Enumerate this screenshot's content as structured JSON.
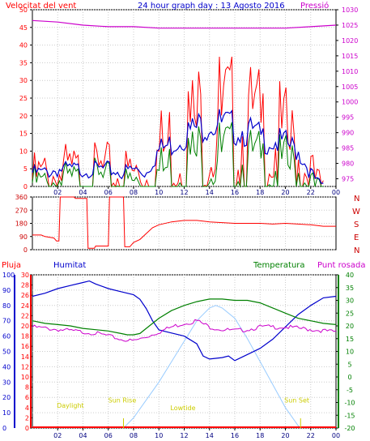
{
  "header": {
    "title": "24 hour graph day : 13 Agosto 2016",
    "wind_label": "Velocitat del vent",
    "pressure_label": "Pressió"
  },
  "panel2": {
    "compass": [
      "N",
      "W",
      "S",
      "E",
      "N"
    ]
  },
  "panel3": {
    "rain_label": "Pluja",
    "humidity_label": "Humitat",
    "temp_label": "Temperatura",
    "dew_label": "Punt rosada",
    "annotations": [
      "Daylight",
      "Sun Rise",
      "Lowtide",
      "Sun Set"
    ]
  },
  "colors": {
    "wind": "#ff0000",
    "gust": "#ff0000",
    "avg": "#0000cc",
    "green": "#008000",
    "pressure": "#cc00cc",
    "title": "#0000cc",
    "humidity": "#0000cc",
    "temperature": "#008000",
    "dew": "#cc00cc",
    "solar": "#99ccff",
    "annotation": "#cccc00",
    "rain": "#ff0000"
  },
  "chart_data": [
    {
      "type": "line",
      "title": "24 hour graph day : 13 Agosto 2016",
      "x_ticks": [
        "02",
        "04",
        "06",
        "08",
        "10",
        "12",
        "14",
        "16",
        "18",
        "20",
        "22",
        "00"
      ],
      "y_left_ticks": [
        0,
        5,
        10,
        15,
        20,
        25,
        30,
        35,
        40,
        45,
        50
      ],
      "y_left_lim": [
        0,
        50
      ],
      "y_right_ticks": [
        975,
        980,
        985,
        990,
        995,
        1000,
        1005,
        1010,
        1015,
        1020,
        1025,
        1030
      ],
      "y_right_lim": [
        972.5,
        1030
      ],
      "x_lim": [
        0,
        24
      ],
      "series": [
        {
          "name": "Velocitat del vent",
          "axis": "left",
          "x": [
            0,
            1,
            2,
            3,
            4,
            5,
            6,
            7,
            8,
            9,
            9.5,
            10,
            11,
            12,
            13,
            14,
            14.5,
            15,
            16,
            17,
            18,
            19,
            20,
            21,
            22,
            22.5,
            23
          ],
          "y": [
            6,
            7,
            8,
            8,
            7,
            8,
            8,
            7,
            8,
            7,
            12,
            16,
            20,
            24,
            27,
            29,
            31,
            28,
            27,
            26,
            24,
            22,
            20,
            16,
            8,
            3,
            2
          ]
        },
        {
          "axis": "left",
          "x": [
            0,
            1,
            2,
            3,
            4,
            5,
            6,
            7,
            8,
            9,
            9.5,
            10,
            11,
            12,
            13,
            14,
            15,
            16,
            17,
            18,
            19,
            20,
            21,
            22,
            22.5,
            23
          ],
          "y": [
            5,
            5,
            6,
            6,
            6,
            6,
            6,
            5,
            6,
            5,
            9,
            12,
            14,
            17,
            19,
            21,
            20,
            19,
            18,
            16,
            15,
            14,
            12,
            5,
            2,
            1
          ]
        },
        {
          "axis": "left",
          "x": [
            0,
            1,
            2,
            3,
            4,
            5,
            6,
            7,
            8,
            9,
            9.5,
            10,
            11,
            12,
            13,
            14,
            15,
            16,
            17,
            18,
            19,
            20,
            21,
            22,
            22.5,
            23
          ],
          "y": [
            4,
            3,
            5,
            4,
            4,
            5,
            4,
            3,
            4,
            3,
            6,
            8,
            10,
            12,
            14,
            15,
            14,
            13,
            12,
            11,
            10,
            10,
            9,
            3,
            1,
            0
          ]
        },
        {
          "name": "Pressió",
          "axis": "right",
          "x": [
            0,
            2,
            4,
            6,
            8,
            10,
            12,
            14,
            16,
            18,
            20,
            22,
            24
          ],
          "y": [
            1026.5,
            1026,
            1025,
            1024.5,
            1024.5,
            1024,
            1024,
            1024,
            1024,
            1024,
            1024,
            1024.5,
            1025
          ]
        }
      ]
    },
    {
      "type": "line",
      "y_ticks": [
        0,
        90,
        180,
        270,
        360
      ],
      "y_lim": [
        0,
        360
      ],
      "x_lim": [
        0,
        24
      ],
      "series": [
        {
          "axis": "left",
          "x": [
            0,
            0.7,
            1.0,
            1.7,
            1.9,
            2.1,
            2.2,
            3.3,
            3.4,
            4.3,
            4.4,
            4.9,
            5.0,
            6.0,
            6.1,
            7.2,
            7.3,
            7.7,
            8.0,
            8.5,
            9.0,
            9.5,
            10,
            11,
            12,
            13,
            14,
            15,
            16,
            17,
            18,
            19,
            20,
            21,
            22,
            23,
            24
          ],
          "y": [
            100,
            100,
            90,
            80,
            60,
            60,
            360,
            360,
            350,
            350,
            10,
            10,
            25,
            25,
            360,
            360,
            20,
            20,
            50,
            70,
            110,
            150,
            170,
            190,
            200,
            200,
            190,
            185,
            180,
            180,
            180,
            175,
            180,
            175,
            170,
            160,
            160
          ]
        }
      ]
    },
    {
      "type": "line",
      "x_lim": [
        0,
        24
      ],
      "y_humidity_ticks": [
        0,
        10,
        20,
        30,
        40,
        50,
        60,
        70,
        80,
        90,
        100
      ],
      "y_humidity_lim": [
        0,
        100
      ],
      "y_rain_ticks": [
        0,
        2,
        4,
        6,
        8,
        10,
        12,
        14,
        16,
        18,
        20,
        22,
        24,
        26,
        28,
        30
      ],
      "y_rain_lim": [
        0,
        30
      ],
      "y_temp_ticks": [
        -20,
        -15,
        -10,
        -5,
        0,
        5,
        10,
        15,
        20,
        25,
        30,
        35,
        40
      ],
      "y_temp_lim": [
        -20,
        40
      ],
      "series": [
        {
          "name": "Humitat",
          "axis": "humidity",
          "x": [
            0,
            1,
            2,
            3,
            4,
            4.5,
            5,
            6,
            7,
            8,
            8.5,
            9,
            9.5,
            10,
            11,
            12,
            13,
            13.5,
            14,
            15,
            15.5,
            16,
            17,
            18,
            19,
            20,
            21,
            22,
            23,
            24
          ],
          "y": [
            86,
            88,
            91,
            93,
            95,
            96,
            94,
            91,
            89,
            87,
            84,
            78,
            70,
            64,
            62,
            60,
            55,
            47,
            45,
            46,
            47,
            44,
            48,
            52,
            58,
            66,
            74,
            80,
            85,
            86
          ]
        },
        {
          "name": "Temperatura",
          "axis": "temp",
          "x": [
            0,
            1,
            2,
            3,
            4,
            5,
            6,
            7,
            7.5,
            8,
            8.5,
            9,
            10,
            11,
            12,
            13,
            14,
            15,
            16,
            17,
            18,
            19,
            20,
            21,
            22,
            23,
            24
          ],
          "y": [
            22,
            21,
            20.5,
            20,
            19,
            18.5,
            18,
            17,
            16.5,
            16.5,
            17,
            19,
            23,
            26,
            28,
            29.5,
            30.5,
            30.5,
            30,
            30,
            29,
            27,
            25,
            23,
            22,
            21,
            20.5
          ]
        },
        {
          "name": "Punt rosada",
          "axis": "temp",
          "x": [
            0,
            1,
            2,
            3,
            4,
            5,
            6,
            7,
            8,
            9,
            10,
            11,
            12,
            13,
            14,
            15,
            16,
            17,
            18,
            19,
            20,
            21,
            22,
            23,
            24
          ],
          "y": [
            20,
            19.5,
            19,
            18.5,
            18,
            17.5,
            16.5,
            15,
            14.5,
            16,
            18,
            20,
            21.5,
            22.5,
            20,
            19,
            18.5,
            19,
            20,
            20,
            20,
            19.5,
            19,
            18.5,
            18
          ]
        },
        {
          "name": "Solar",
          "axis": "temp",
          "x": [
            7.2,
            8,
            9,
            10,
            11,
            12,
            13,
            14,
            14.5,
            15,
            16,
            17,
            18,
            19,
            20,
            21,
            21.2
          ],
          "y": [
            -20,
            -16,
            -9,
            -2,
            6,
            14,
            22,
            27,
            28,
            27,
            23,
            15,
            6,
            -3,
            -12,
            -19,
            -20
          ]
        },
        {
          "name": "Pluja",
          "axis": "rain",
          "x": [
            0,
            24
          ],
          "y": [
            0,
            0
          ]
        }
      ],
      "annotations": [
        {
          "text": "Daylight",
          "x": 3.0,
          "temp": -12
        },
        {
          "text": "Sun Rise",
          "x": 7.1,
          "temp": -10
        },
        {
          "text": "Lowtide",
          "x": 11.9,
          "temp": -13
        },
        {
          "text": "Sun Set",
          "x": 20.9,
          "temp": -10
        }
      ],
      "markers": [
        7.2,
        21.2
      ]
    }
  ]
}
